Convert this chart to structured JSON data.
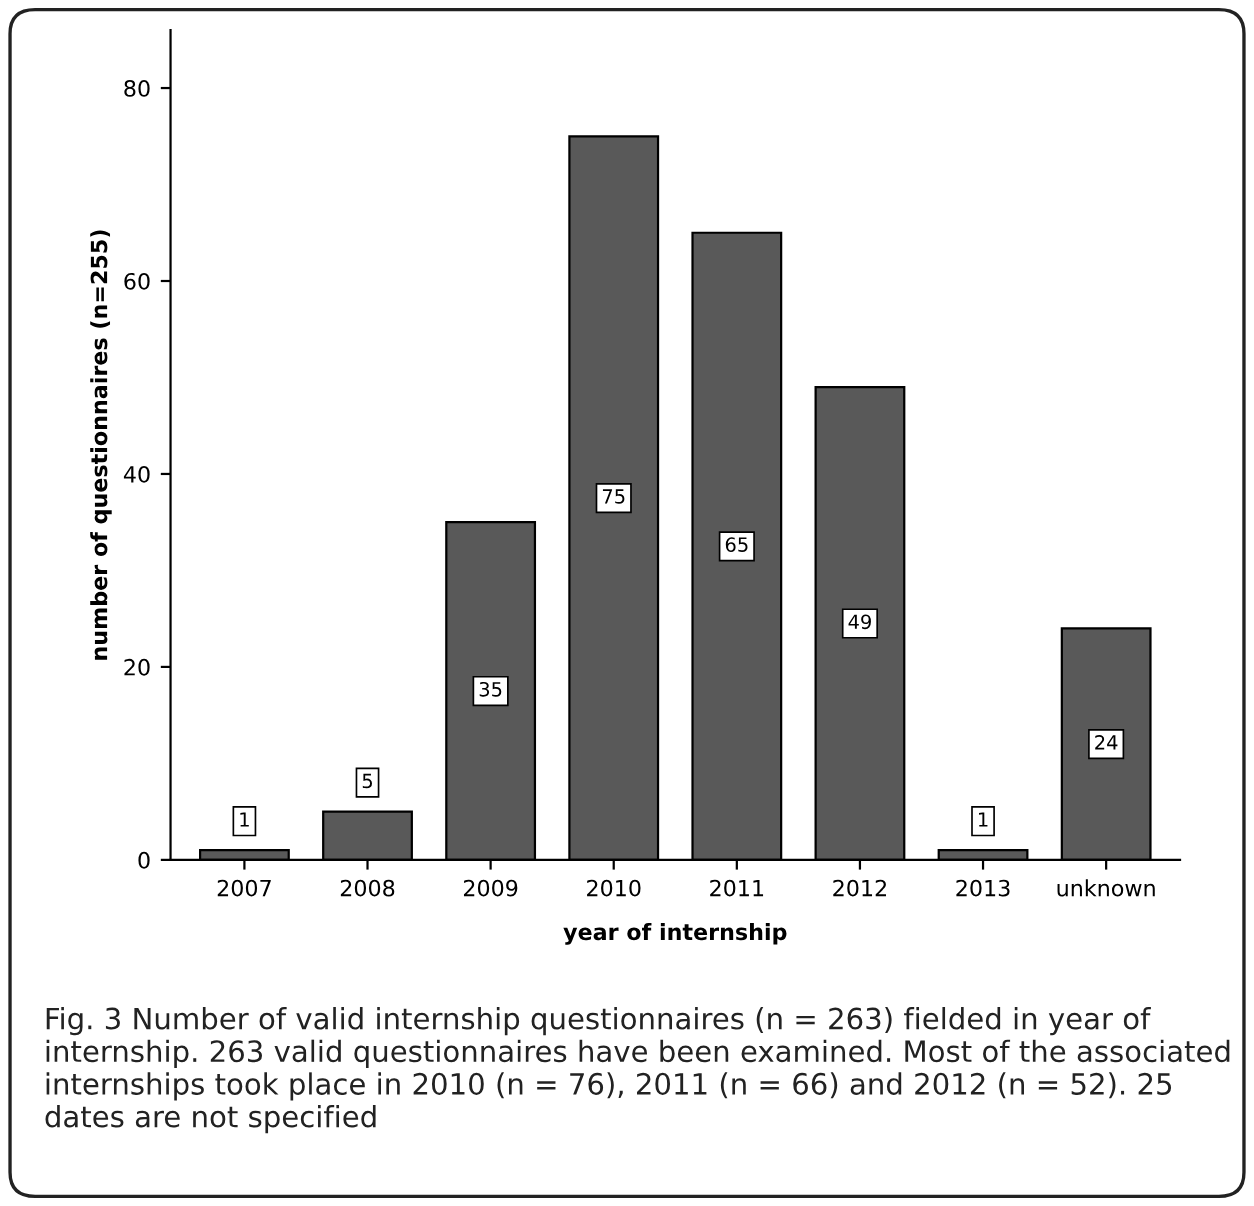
{
  "chart_data": {
    "type": "bar",
    "xlabel": "year of internship",
    "ylabel": "number of questionnaires (n=255)",
    "categories": [
      "2007",
      "2008",
      "2009",
      "2010",
      "2011",
      "2012",
      "2013",
      "unknown"
    ],
    "values": [
      1,
      5,
      35,
      75,
      65,
      49,
      1,
      24
    ],
    "color": "#595959",
    "data_labels": true,
    "ylim": [
      0,
      86
    ],
    "yticks": [
      0,
      20,
      40,
      60,
      80
    ],
    "grid": false,
    "annotations": [
      "Fig. 3 Number of valid internship questionnaires (n = 263) fielded in year of internship. 263 valid questionnaires have been examined. Most of the associated internships took place in 2010 (n = 76), 2011 (n = 66) and 2012 (n = 52). 25 dates are not specified"
    ]
  }
}
